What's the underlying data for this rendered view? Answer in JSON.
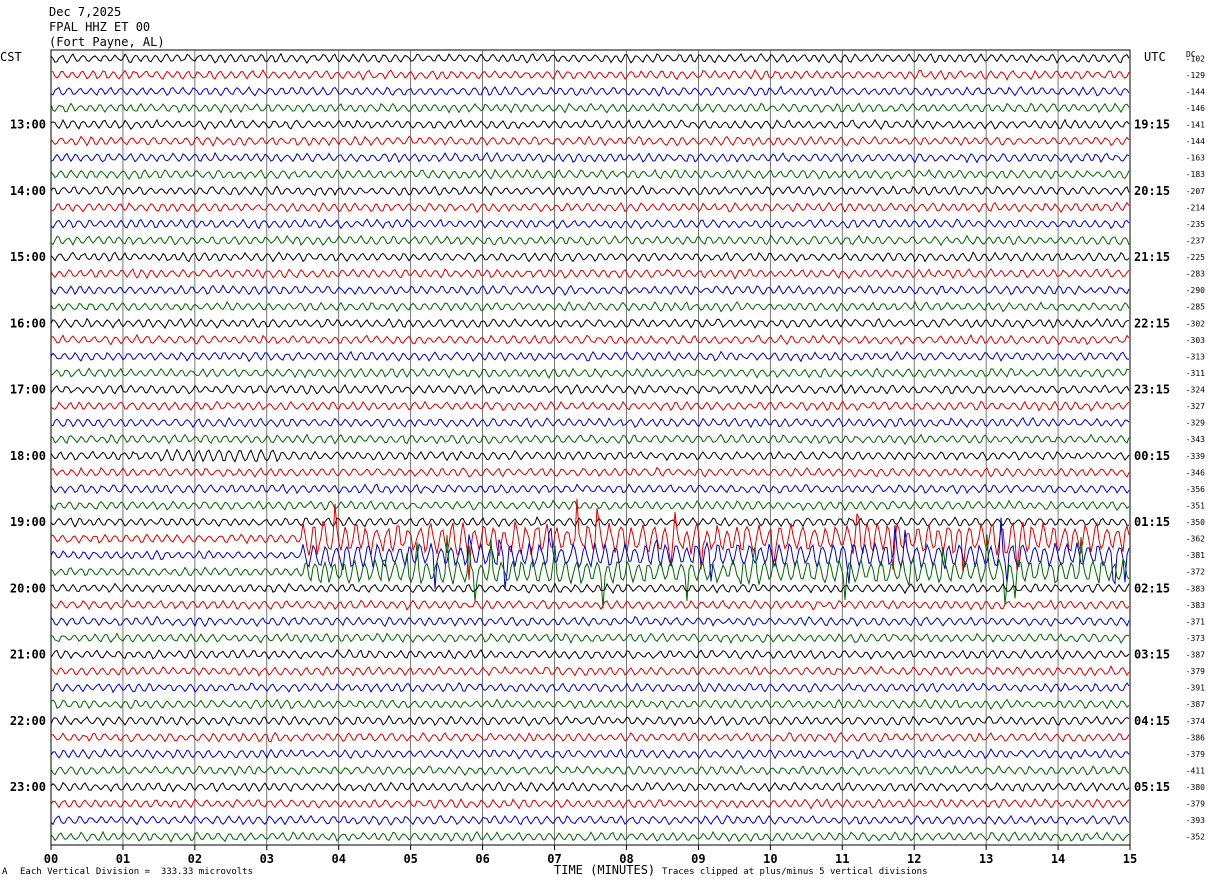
{
  "header": {
    "date": "Dec 7,2025",
    "station": "FPAL HHZ ET 00",
    "location": "(Fort Payne, AL)",
    "left_timezone": "CST",
    "right_timezone": "UTC",
    "dc_label": "DC"
  },
  "footer": {
    "scale_note": "Each Vertical Division =  333.33 microvolts",
    "clip_note": "Traces clipped at plus/minus 5 vertical divisions",
    "x_title": "TIME (MINUTES)",
    "corner_mark": "A"
  },
  "colors": {
    "trace_cycle": [
      "#000000",
      "#dd0000",
      "#0000cc",
      "#006600"
    ],
    "grid": "#000000",
    "background": "#ffffff"
  },
  "chart_data": {
    "type": "line",
    "title": "FPAL HHZ ET 00",
    "xlabel": "TIME (MINUTES)",
    "xlim": [
      0,
      15
    ],
    "x_ticks": [
      "00",
      "01",
      "02",
      "03",
      "04",
      "05",
      "06",
      "07",
      "08",
      "09",
      "10",
      "11",
      "12",
      "13",
      "14",
      "15"
    ],
    "rows_per_hour": 4,
    "row_count": 48,
    "left_hour_labels": [
      "13:00",
      "14:00",
      "15:00",
      "16:00",
      "17:00",
      "18:00",
      "19:00",
      "20:00",
      "21:00",
      "22:00",
      "23:00"
    ],
    "right_hour_labels": [
      "19:15",
      "20:15",
      "21:15",
      "22:15",
      "23:15",
      "00:15",
      "01:15",
      "02:15",
      "03:15",
      "04:15",
      "05:15"
    ],
    "dc_offsets": [
      -102,
      -129,
      -144,
      -146,
      -141,
      -144,
      -163,
      -183,
      -207,
      -214,
      -235,
      -237,
      -225,
      -283,
      -290,
      -285,
      -302,
      -303,
      -313,
      -311,
      -324,
      -327,
      -329,
      -343,
      -339,
      -346,
      -356,
      -351,
      -350,
      -362,
      -381,
      -372,
      -383,
      -383,
      -371,
      -373,
      -387,
      -379,
      -391,
      -387,
      -374,
      -386,
      -379,
      -411,
      -380,
      -379,
      -393,
      -352
    ],
    "event": {
      "description_rows": [
        29,
        30,
        31
      ],
      "start_minute": 3.5,
      "end_minute": 15
    }
  }
}
